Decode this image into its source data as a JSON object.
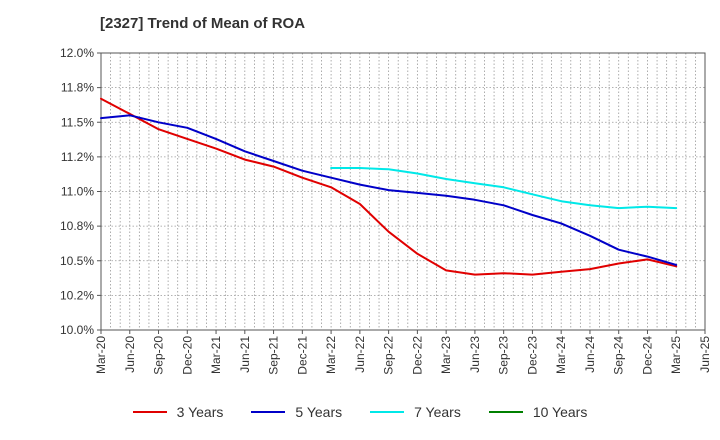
{
  "chart_data": {
    "type": "line",
    "title": "[2327]  Trend of Mean of ROA",
    "xlabel": "",
    "ylabel": "",
    "ylim": [
      10.0,
      12.0
    ],
    "yticks": [
      "10.0%",
      "10.2%",
      "10.5%",
      "10.8%",
      "11.0%",
      "11.2%",
      "11.5%",
      "11.8%",
      "12.0%"
    ],
    "ytick_values": [
      10.0,
      10.25,
      10.5,
      10.75,
      11.0,
      11.25,
      11.5,
      11.75,
      12.0
    ],
    "xticks": [
      "Mar-20",
      "Jun-20",
      "Sep-20",
      "Dec-20",
      "Mar-21",
      "Jun-21",
      "Sep-21",
      "Dec-21",
      "Mar-22",
      "Jun-22",
      "Sep-22",
      "Dec-22",
      "Mar-23",
      "Jun-23",
      "Sep-23",
      "Dec-23",
      "Mar-24",
      "Jun-24",
      "Sep-24",
      "Dec-24",
      "Mar-25",
      "Jun-25"
    ],
    "x_months": 63,
    "grid": true,
    "legend_position": "bottom",
    "series": [
      {
        "name": "3 Years",
        "color": "#e00000",
        "points": [
          [
            0,
            11.67
          ],
          [
            3,
            11.56
          ],
          [
            6,
            11.45
          ],
          [
            9,
            11.38
          ],
          [
            12,
            11.31
          ],
          [
            15,
            11.23
          ],
          [
            18,
            11.18
          ],
          [
            21,
            11.1
          ],
          [
            24,
            11.03
          ],
          [
            27,
            10.91
          ],
          [
            30,
            10.71
          ],
          [
            33,
            10.55
          ],
          [
            36,
            10.43
          ],
          [
            39,
            10.4
          ],
          [
            42,
            10.41
          ],
          [
            45,
            10.4
          ],
          [
            48,
            10.42
          ],
          [
            51,
            10.44
          ],
          [
            54,
            10.48
          ],
          [
            57,
            10.51
          ],
          [
            60,
            10.46
          ]
        ]
      },
      {
        "name": "5 Years",
        "color": "#0000c8",
        "points": [
          [
            0,
            11.53
          ],
          [
            3,
            11.55
          ],
          [
            6,
            11.5
          ],
          [
            9,
            11.46
          ],
          [
            12,
            11.38
          ],
          [
            15,
            11.29
          ],
          [
            18,
            11.22
          ],
          [
            21,
            11.15
          ],
          [
            24,
            11.1
          ],
          [
            27,
            11.05
          ],
          [
            30,
            11.01
          ],
          [
            33,
            10.99
          ],
          [
            36,
            10.97
          ],
          [
            39,
            10.94
          ],
          [
            42,
            10.9
          ],
          [
            45,
            10.83
          ],
          [
            48,
            10.77
          ],
          [
            51,
            10.68
          ],
          [
            54,
            10.58
          ],
          [
            57,
            10.53
          ],
          [
            60,
            10.47
          ]
        ]
      },
      {
        "name": "7 Years",
        "color": "#00e8e8",
        "points": [
          [
            24,
            11.17
          ],
          [
            27,
            11.17
          ],
          [
            30,
            11.16
          ],
          [
            33,
            11.13
          ],
          [
            36,
            11.09
          ],
          [
            39,
            11.06
          ],
          [
            42,
            11.03
          ],
          [
            45,
            10.98
          ],
          [
            48,
            10.93
          ],
          [
            51,
            10.9
          ],
          [
            54,
            10.88
          ],
          [
            57,
            10.89
          ],
          [
            60,
            10.88
          ]
        ]
      },
      {
        "name": "10 Years",
        "color": "#008000",
        "points": []
      }
    ]
  }
}
